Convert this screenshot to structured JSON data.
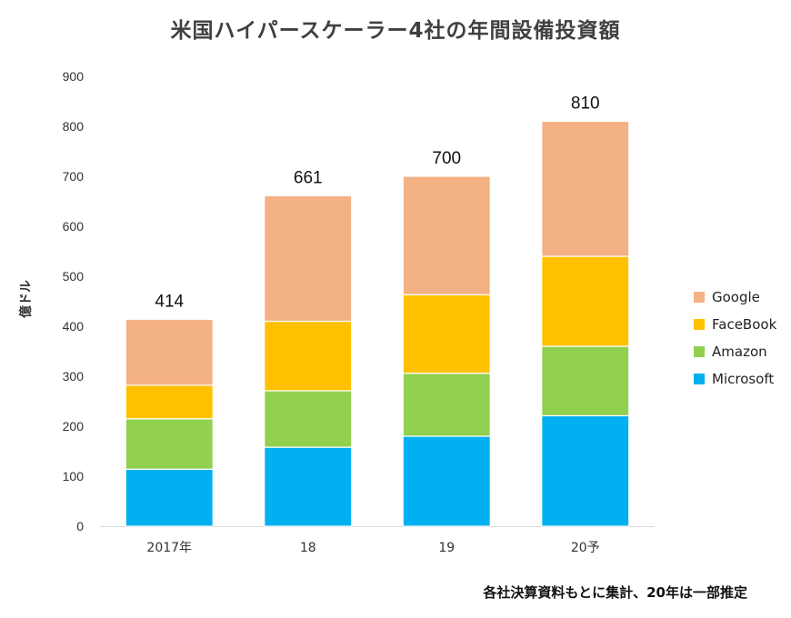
{
  "chart_data": {
    "type": "bar",
    "stacked": true,
    "title": "米国ハイパースケーラー4社の年間設備投資額",
    "ylabel": "億ドル",
    "xlabel": "",
    "ylim": [
      0,
      900
    ],
    "yticks": [
      "0",
      "100",
      "200",
      "300",
      "400",
      "500",
      "600",
      "700",
      "800",
      "900"
    ],
    "categories": [
      "2017年",
      "18",
      "19",
      "20予"
    ],
    "series": [
      {
        "name": "Microsoft",
        "color": "#00B0F0",
        "values": [
          114,
          158,
          180,
          221
        ]
      },
      {
        "name": "Amazon",
        "color": "#92D050",
        "values": [
          101,
          113,
          126,
          139
        ]
      },
      {
        "name": "FaceBook",
        "color": "#FFC000",
        "values": [
          67,
          139,
          157,
          180
        ]
      },
      {
        "name": "Google",
        "color": "#F4B183",
        "values": [
          132,
          251,
          237,
          270
        ]
      }
    ],
    "totals": [
      "414",
      "661",
      "700",
      "810"
    ],
    "legend_position": "right",
    "grid": false
  },
  "footnote": "各社決算資料もとに集計、20年は一部推定"
}
